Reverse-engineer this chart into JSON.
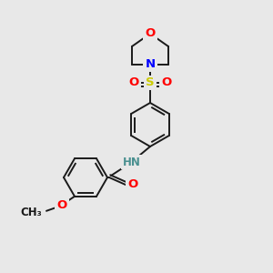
{
  "background_color": "#e8e8e8",
  "bond_color": "#1a1a1a",
  "atom_colors": {
    "O": "#ff0000",
    "N": "#0000ff",
    "S": "#cccc00",
    "C": "#1a1a1a",
    "H": "#4a9090"
  },
  "lw": 1.4,
  "fs": 8.5,
  "ring_r": 24
}
